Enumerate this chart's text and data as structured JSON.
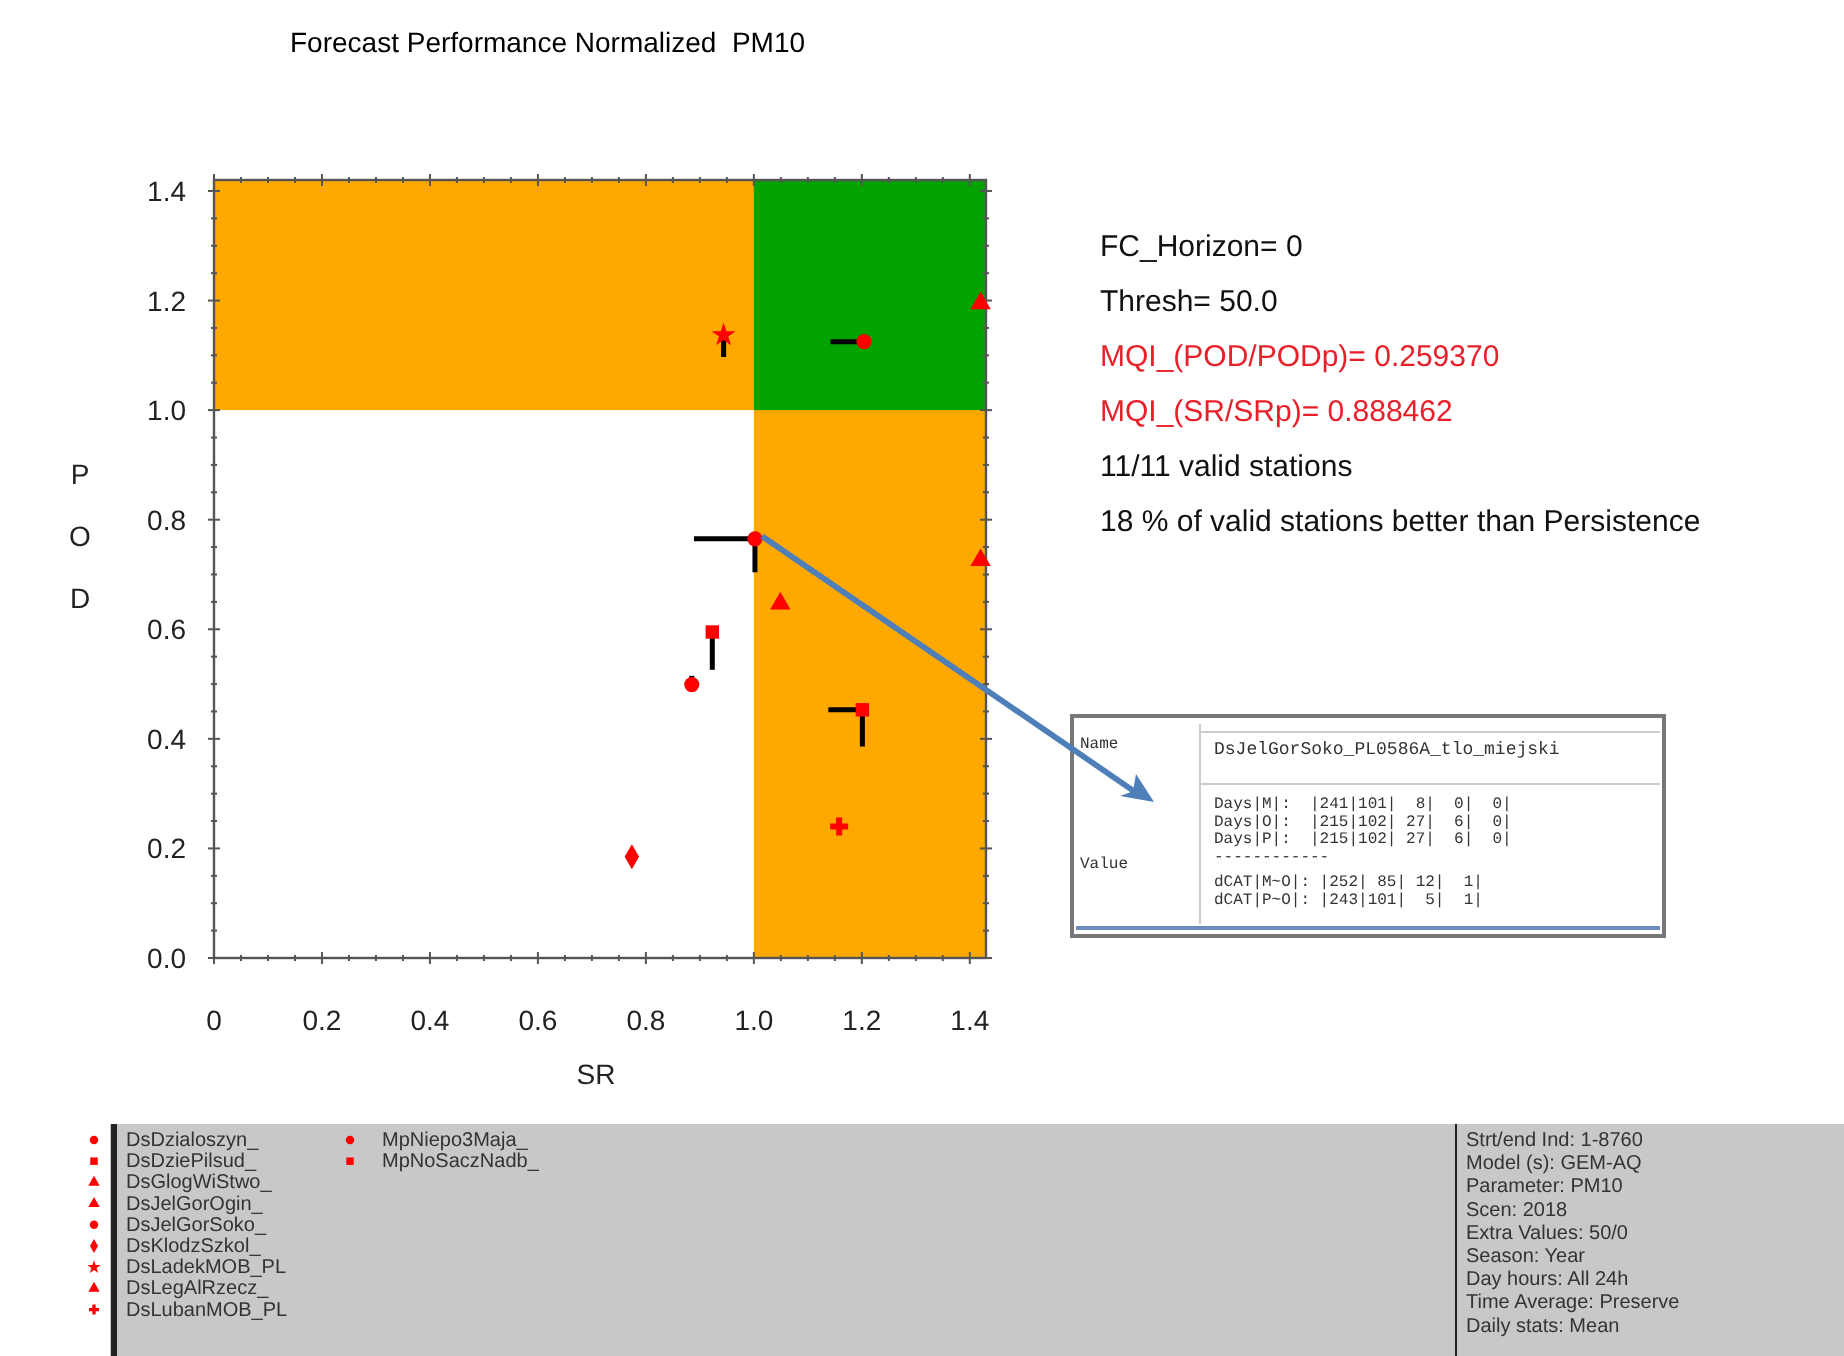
{
  "chart_data": {
    "type": "scatter",
    "title": "Forecast Performance Normalized  PM10",
    "xlabel": "SR",
    "ylabel": "POD",
    "xlim": [
      0,
      1.43
    ],
    "ylim": [
      0,
      1.42
    ],
    "xticks": [
      0,
      {
        "value": 0.05,
        "label": null
      },
      {
        "value": 0.1,
        "label": null
      },
      {
        "value": 0.15,
        "label": null
      },
      {
        "value": 0.2,
        "label": "0.2"
      },
      {
        "value": 0.25,
        "label": null
      },
      {
        "value": 0.3,
        "label": null
      },
      {
        "value": 0.35,
        "label": null
      },
      {
        "value": 0.4,
        "label": "0.4"
      },
      {
        "value": 0.45,
        "label": null
      },
      {
        "value": 0.5,
        "label": null
      },
      {
        "value": 0.55,
        "label": null
      },
      {
        "value": 0.6,
        "label": "0.6"
      },
      {
        "value": 0.65,
        "label": null
      },
      {
        "value": 0.7,
        "label": null
      },
      {
        "value": 0.75,
        "label": null
      },
      {
        "value": 0.8,
        "label": "0.8"
      },
      {
        "value": 0.85,
        "label": null
      },
      {
        "value": 0.9,
        "label": null
      },
      {
        "value": 0.95,
        "label": null
      },
      {
        "value": 1,
        "label": "1.0"
      },
      {
        "value": 1.05,
        "label": null
      },
      {
        "value": 1.1,
        "label": null
      },
      {
        "value": 1.15,
        "label": null
      },
      {
        "value": 1.2,
        "label": "1.2"
      },
      {
        "value": 1.25,
        "label": null
      },
      {
        "value": 1.3,
        "label": null
      },
      {
        "value": 1.35,
        "label": null
      },
      {
        "value": 1.4,
        "label": "1.4"
      }
    ],
    "yticks": [
      {
        "value": 0,
        "label": "0.0"
      },
      {
        "value": 0.05,
        "label": null
      },
      {
        "value": 0.1,
        "label": null
      },
      {
        "value": 0.15,
        "label": null
      },
      {
        "value": 0.2,
        "label": "0.2"
      },
      {
        "value": 0.25,
        "label": null
      },
      {
        "value": 0.3,
        "label": null
      },
      {
        "value": 0.35,
        "label": null
      },
      {
        "value": 0.4,
        "label": "0.4"
      },
      {
        "value": 0.45,
        "label": null
      },
      {
        "value": 0.5,
        "label": null
      },
      {
        "value": 0.55,
        "label": null
      },
      {
        "value": 0.6,
        "label": "0.6"
      },
      {
        "value": 0.65,
        "label": null
      },
      {
        "value": 0.7,
        "label": null
      },
      {
        "value": 0.75,
        "label": null
      },
      {
        "value": 0.8,
        "label": "0.8"
      },
      {
        "value": 0.85,
        "label": null
      },
      {
        "value": 0.9,
        "label": null
      },
      {
        "value": 0.95,
        "label": null
      },
      {
        "value": 1,
        "label": "1.0"
      },
      {
        "value": 1.05,
        "label": null
      },
      {
        "value": 1.1,
        "label": null
      },
      {
        "value": 1.15,
        "label": null
      },
      {
        "value": 1.2,
        "label": "1.2"
      },
      {
        "value": 1.25,
        "label": null
      },
      {
        "value": 1.3,
        "label": null
      },
      {
        "value": 1.35,
        "label": null
      },
      {
        "value": 1.4,
        "label": "1.4"
      }
    ],
    "grid": false,
    "legend": "bottom",
    "bands": [
      {
        "axis": "y",
        "from": 1,
        "to": 1.42,
        "color": "#ffa800"
      },
      {
        "axis": "x",
        "from": 1,
        "to": 1.43,
        "color": "#ffa800"
      }
    ],
    "series": [
      {
        "name": "DsDzialoszyn_",
        "color": "#ff0000",
        "marker": "circle",
        "x": [
          0.885
        ],
        "values": [
          0.499
        ],
        "errors": [
          [
            0.499,
            0.515
          ]
        ]
      },
      {
        "name": "DsDziePilsud_",
        "color": "#ff0000",
        "marker": "square",
        "x": [
          1.201
        ],
        "values": [
          0.453
        ],
        "xerrors": [
          [
            1.138,
            1.201
          ]
        ],
        "errors": [
          [
            0.386,
            0.453
          ]
        ]
      },
      {
        "name": "DsGlogWiStwo_",
        "color": "#ff0000",
        "marker": "triangle",
        "x": [
          1.049
        ],
        "values": [
          0.647
        ]
      },
      {
        "name": "DsJelGorOgin_",
        "color": "#ff0000",
        "marker": "triangle",
        "x": [
          1.42
        ],
        "values": [
          1.195
        ]
      },
      {
        "name": "DsJelGorSoko_",
        "color": "#ff0000",
        "marker": "circle",
        "x": [
          1.002
        ],
        "values": [
          0.765
        ],
        "xerrors": [
          [
            0.889,
            1.002
          ]
        ],
        "errors": [
          [
            0.704,
            0.765
          ]
        ]
      },
      {
        "name": "DsKlodzSzkol_",
        "color": "#ff0000",
        "marker": "diamond",
        "x": [
          0.774
        ],
        "values": [
          0.185
        ]
      },
      {
        "name": "DsLadekMOB_PL",
        "color": "#ff0000",
        "marker": "star",
        "x": [
          0.944
        ],
        "values": [
          1.137
        ],
        "errors": [
          [
            1.097,
            1.137
          ]
        ]
      },
      {
        "name": "DsLegAlRzecz_",
        "color": "#ff0000",
        "marker": "triangle",
        "x": [
          1.42
        ],
        "values": [
          0.726
        ]
      },
      {
        "name": "DsLubanMOB_PL",
        "color": "#ff0000",
        "marker": "cross",
        "x": [
          1.158
        ],
        "values": [
          0.24
        ]
      },
      {
        "name": "MpNiepo3Maja_",
        "color": "#ff0000",
        "marker": "circle",
        "x": [
          1.204
        ],
        "values": [
          1.125
        ],
        "xerrors": [
          [
            1.142,
            1.204
          ]
        ]
      },
      {
        "name": "MpNoSaczNadb_",
        "color": "#ff0000",
        "marker": "square",
        "x": [
          0.923
        ],
        "values": [
          0.595
        ],
        "errors": [
          [
            0.526,
            0.595
          ]
        ]
      }
    ],
    "annotations": [
      "FC_Horizon= 0",
      "Thresh= 50.0",
      "MQI_(POD/PODp)= 0.259370",
      "MQI_(SR/SRp)= 0.888462",
      "11/11 valid stations",
      "18 % of valid stations better than Persistence",
      "Name",
      "DsJelGorSoko_PL0586A_tlo_miejski",
      "Value",
      "Days|M|:  |241|101|  8|  0|  0|",
      "Days|O|:  |215|102| 27|  6|  0|",
      "Days|P|:  |215|102| 27|  6|  0|",
      "------------",
      "dCAT|M~O|: |252| 85| 12|  1|",
      "dCAT|P~O|: |243|101|  5|  1|",
      "Strt/end Ind: 1-8760",
      "Model (s): GEM-AQ",
      "Parameter: PM10",
      "Scen: 2018",
      "Extra Values: 50/0",
      "Season: Year",
      "Day hours: All 24h",
      "Time Average: Preserve",
      "Daily stats: Mean"
    ]
  }
}
